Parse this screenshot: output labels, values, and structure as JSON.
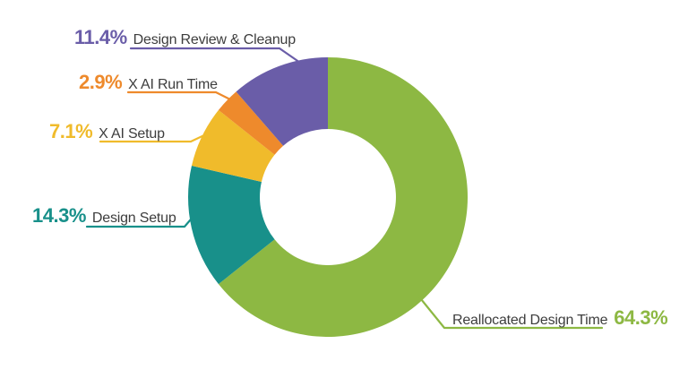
{
  "chart_data": {
    "type": "pie",
    "donut": true,
    "title": "",
    "start_angle_deg": 0,
    "direction": "clockwise",
    "inner_radius_ratio": 0.487,
    "background_color": "#ffffff",
    "label_text_color": "#3d3d3d",
    "legend_position": "callout-labels",
    "slices": [
      {
        "label": "Reallocated Design Time",
        "value": 64.3,
        "percent_label": "64.3%",
        "color": "#8db843"
      },
      {
        "label": "Design Setup",
        "value": 14.3,
        "percent_label": "14.3%",
        "color": "#18908a"
      },
      {
        "label": "X AI Setup",
        "value": 7.1,
        "percent_label": "7.1%",
        "color": "#f0bb2b"
      },
      {
        "label": "X AI Run Time",
        "value": 2.9,
        "percent_label": "2.9%",
        "color": "#ee8a2c"
      },
      {
        "label": "Design Review & Cleanup",
        "value": 11.4,
        "percent_label": "11.4%",
        "color": "#6a5da8"
      }
    ]
  }
}
